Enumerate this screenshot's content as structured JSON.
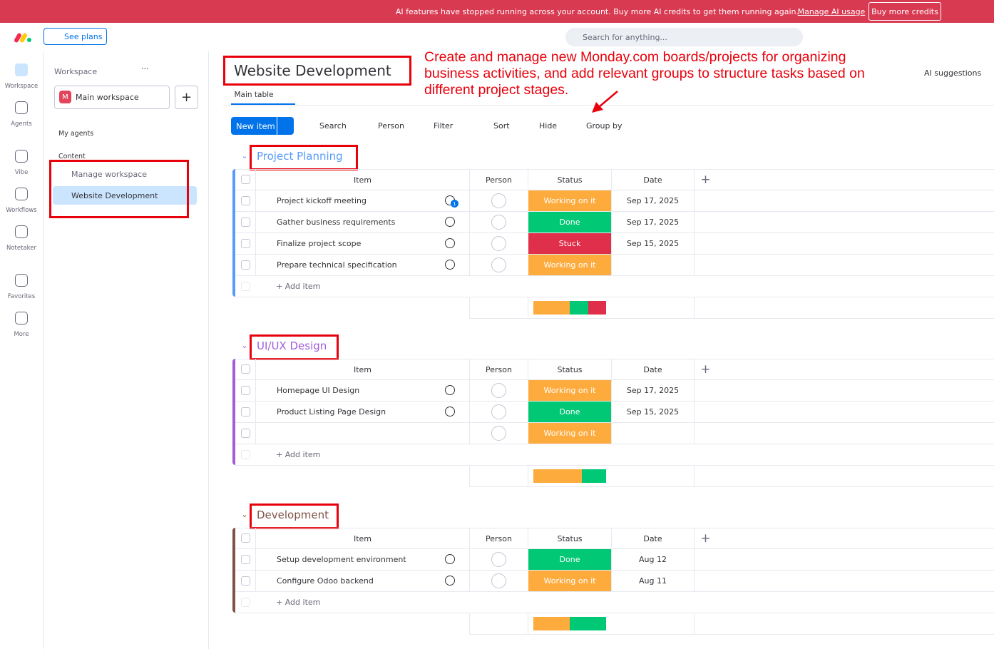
{
  "banner": {
    "message": "AI features have stopped running across your account.  Buy more AI credits to get them running again.",
    "link": "Manage AI usage",
    "button": "Buy more credits"
  },
  "topbar": {
    "see_plans": "See plans",
    "search_placeholder": "Search for anything..."
  },
  "nav": [
    "Workspace",
    "Agents",
    "Vibe",
    "Workflows",
    "Notetaker",
    "Favorites",
    "More"
  ],
  "sidebar": {
    "title": "Workspace",
    "workspace": "Main workspace",
    "workspace_initial": "M",
    "my_agents": "My agents",
    "content": "Content",
    "items": [
      "Manage workspace",
      "Website Development"
    ]
  },
  "board": {
    "title": "Website Development",
    "tab": "Main table",
    "ai_suggestions": "AI suggestions",
    "toolbar": {
      "new_item": "New item",
      "search": "Search",
      "person": "Person",
      "filter": "Filter",
      "sort": "Sort",
      "hide": "Hide",
      "group_by": "Group by"
    },
    "columns": [
      "Item",
      "Person",
      "Status",
      "Date"
    ],
    "add_item": "+ Add item",
    "statuses": [
      {
        "label": "Working on it",
        "color": "#fdab3d"
      },
      {
        "label": "Done",
        "color": "#00c875"
      },
      {
        "label": "Stuck",
        "color": "#df2f4a"
      }
    ],
    "groups": [
      {
        "name": "Project Planning",
        "color": "#579bfc",
        "items": [
          {
            "name": "Project kickoff meeting",
            "updates": 1,
            "status": "Working on it",
            "date": "Sep 17, 2025"
          },
          {
            "name": "Gather business requirements",
            "status": "Done",
            "date": "Sep 17, 2025"
          },
          {
            "name": "Finalize project scope",
            "status": "Stuck",
            "date": "Sep 15, 2025"
          },
          {
            "name": "Prepare technical specification",
            "status": "Working on it",
            "date": null
          }
        ]
      },
      {
        "name": "UI/UX Design",
        "color": "#a25ddc",
        "items": [
          {
            "name": "Homepage UI Design",
            "status": "Working on it",
            "date": "Sep 17, 2025"
          },
          {
            "name": "Product Listing Page Design",
            "status": "Done",
            "date": "Sep 15, 2025"
          },
          {
            "name": null,
            "status": "Working on it",
            "date": null
          }
        ]
      },
      {
        "name": "Development",
        "color": "#7f5347",
        "items": [
          {
            "name": "Setup development environment",
            "status": "Done",
            "date": "Aug 12"
          },
          {
            "name": "Configure Odoo backend",
            "status": "Working on it",
            "date": "Aug 11"
          }
        ]
      }
    ]
  },
  "annotation": "Create and manage new Monday.com boards/projects for organizing business activities, and add relevant groups to structure tasks based on different project stages."
}
